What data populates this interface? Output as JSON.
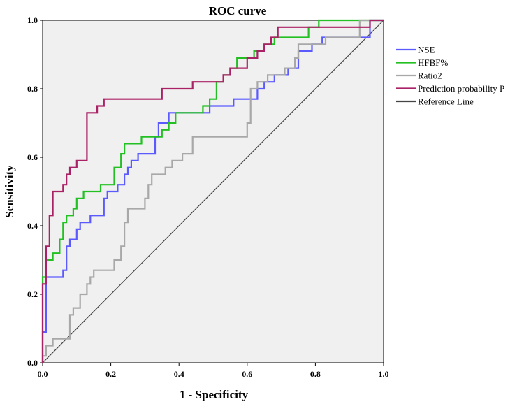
{
  "chart_data": {
    "type": "line",
    "title": "ROC   curve",
    "xlabel": "1 - Specificity",
    "ylabel": "Sensitivity",
    "xlim": [
      0,
      1
    ],
    "ylim": [
      0,
      1
    ],
    "xticks": [
      "0.0",
      "0.2",
      "0.4",
      "0.6",
      "0.8",
      "1.0"
    ],
    "yticks": [
      "0.0",
      "0.2",
      "0.4",
      "0.6",
      "0.8",
      "1.0"
    ],
    "legend_position": "right",
    "series": [
      {
        "name": "NSE",
        "color": "#5a5aff",
        "points": [
          [
            0,
            0
          ],
          [
            0,
            0.09
          ],
          [
            0.01,
            0.09
          ],
          [
            0.01,
            0.25
          ],
          [
            0.06,
            0.25
          ],
          [
            0.06,
            0.27
          ],
          [
            0.07,
            0.27
          ],
          [
            0.07,
            0.34
          ],
          [
            0.08,
            0.34
          ],
          [
            0.08,
            0.36
          ],
          [
            0.1,
            0.36
          ],
          [
            0.1,
            0.39
          ],
          [
            0.11,
            0.39
          ],
          [
            0.11,
            0.41
          ],
          [
            0.14,
            0.41
          ],
          [
            0.14,
            0.43
          ],
          [
            0.18,
            0.43
          ],
          [
            0.18,
            0.48
          ],
          [
            0.19,
            0.48
          ],
          [
            0.19,
            0.5
          ],
          [
            0.22,
            0.5
          ],
          [
            0.22,
            0.52
          ],
          [
            0.24,
            0.52
          ],
          [
            0.24,
            0.55
          ],
          [
            0.25,
            0.55
          ],
          [
            0.25,
            0.57
          ],
          [
            0.26,
            0.57
          ],
          [
            0.26,
            0.59
          ],
          [
            0.28,
            0.59
          ],
          [
            0.28,
            0.61
          ],
          [
            0.3,
            0.61
          ],
          [
            0.3,
            0.61
          ],
          [
            0.33,
            0.61
          ],
          [
            0.33,
            0.66
          ],
          [
            0.34,
            0.66
          ],
          [
            0.34,
            0.7
          ],
          [
            0.37,
            0.7
          ],
          [
            0.37,
            0.73
          ],
          [
            0.44,
            0.73
          ],
          [
            0.44,
            0.73
          ],
          [
            0.49,
            0.73
          ],
          [
            0.49,
            0.75
          ],
          [
            0.56,
            0.75
          ],
          [
            0.56,
            0.77
          ],
          [
            0.63,
            0.77
          ],
          [
            0.63,
            0.8
          ],
          [
            0.65,
            0.8
          ],
          [
            0.65,
            0.82
          ],
          [
            0.68,
            0.82
          ],
          [
            0.68,
            0.84
          ],
          [
            0.7,
            0.84
          ],
          [
            0.7,
            0.84
          ],
          [
            0.72,
            0.84
          ],
          [
            0.72,
            0.86
          ],
          [
            0.75,
            0.86
          ],
          [
            0.75,
            0.91
          ],
          [
            0.79,
            0.91
          ],
          [
            0.79,
            0.93
          ],
          [
            0.82,
            0.93
          ],
          [
            0.82,
            0.95
          ],
          [
            0.96,
            0.95
          ],
          [
            0.96,
            1.0
          ],
          [
            1.0,
            1.0
          ]
        ]
      },
      {
        "name": "HFBF%",
        "color": "#22c022",
        "points": [
          [
            0,
            0
          ],
          [
            0,
            0.25
          ],
          [
            0.01,
            0.25
          ],
          [
            0.01,
            0.3
          ],
          [
            0.03,
            0.3
          ],
          [
            0.03,
            0.32
          ],
          [
            0.05,
            0.32
          ],
          [
            0.05,
            0.36
          ],
          [
            0.06,
            0.36
          ],
          [
            0.06,
            0.41
          ],
          [
            0.07,
            0.41
          ],
          [
            0.07,
            0.43
          ],
          [
            0.09,
            0.43
          ],
          [
            0.09,
            0.45
          ],
          [
            0.1,
            0.45
          ],
          [
            0.1,
            0.48
          ],
          [
            0.12,
            0.48
          ],
          [
            0.12,
            0.5
          ],
          [
            0.17,
            0.5
          ],
          [
            0.17,
            0.52
          ],
          [
            0.21,
            0.52
          ],
          [
            0.21,
            0.57
          ],
          [
            0.23,
            0.57
          ],
          [
            0.23,
            0.61
          ],
          [
            0.24,
            0.61
          ],
          [
            0.24,
            0.64
          ],
          [
            0.29,
            0.64
          ],
          [
            0.29,
            0.66
          ],
          [
            0.35,
            0.66
          ],
          [
            0.35,
            0.68
          ],
          [
            0.37,
            0.68
          ],
          [
            0.37,
            0.7
          ],
          [
            0.39,
            0.7
          ],
          [
            0.39,
            0.73
          ],
          [
            0.47,
            0.73
          ],
          [
            0.47,
            0.75
          ],
          [
            0.49,
            0.75
          ],
          [
            0.49,
            0.77
          ],
          [
            0.51,
            0.77
          ],
          [
            0.51,
            0.82
          ],
          [
            0.53,
            0.82
          ],
          [
            0.53,
            0.84
          ],
          [
            0.55,
            0.84
          ],
          [
            0.55,
            0.86
          ],
          [
            0.57,
            0.86
          ],
          [
            0.57,
            0.89
          ],
          [
            0.62,
            0.89
          ],
          [
            0.62,
            0.91
          ],
          [
            0.65,
            0.91
          ],
          [
            0.65,
            0.93
          ],
          [
            0.68,
            0.93
          ],
          [
            0.68,
            0.95
          ],
          [
            0.78,
            0.95
          ],
          [
            0.78,
            0.98
          ],
          [
            0.81,
            0.98
          ],
          [
            0.81,
            1.0
          ],
          [
            1.0,
            1.0
          ]
        ]
      },
      {
        "name": "Ratio2",
        "color": "#a8a8a8",
        "points": [
          [
            0,
            0
          ],
          [
            0,
            0.02
          ],
          [
            0.01,
            0.02
          ],
          [
            0.01,
            0.05
          ],
          [
            0.03,
            0.05
          ],
          [
            0.03,
            0.07
          ],
          [
            0.08,
            0.07
          ],
          [
            0.08,
            0.14
          ],
          [
            0.09,
            0.14
          ],
          [
            0.09,
            0.16
          ],
          [
            0.11,
            0.16
          ],
          [
            0.11,
            0.2
          ],
          [
            0.13,
            0.2
          ],
          [
            0.13,
            0.23
          ],
          [
            0.14,
            0.23
          ],
          [
            0.14,
            0.25
          ],
          [
            0.15,
            0.25
          ],
          [
            0.15,
            0.27
          ],
          [
            0.21,
            0.27
          ],
          [
            0.21,
            0.3
          ],
          [
            0.23,
            0.3
          ],
          [
            0.23,
            0.34
          ],
          [
            0.24,
            0.34
          ],
          [
            0.24,
            0.41
          ],
          [
            0.25,
            0.41
          ],
          [
            0.25,
            0.45
          ],
          [
            0.3,
            0.45
          ],
          [
            0.3,
            0.48
          ],
          [
            0.31,
            0.48
          ],
          [
            0.31,
            0.52
          ],
          [
            0.32,
            0.52
          ],
          [
            0.32,
            0.55
          ],
          [
            0.36,
            0.55
          ],
          [
            0.36,
            0.57
          ],
          [
            0.38,
            0.57
          ],
          [
            0.38,
            0.59
          ],
          [
            0.41,
            0.59
          ],
          [
            0.41,
            0.61
          ],
          [
            0.44,
            0.61
          ],
          [
            0.44,
            0.66
          ],
          [
            0.6,
            0.66
          ],
          [
            0.6,
            0.7
          ],
          [
            0.61,
            0.7
          ],
          [
            0.61,
            0.8
          ],
          [
            0.63,
            0.8
          ],
          [
            0.63,
            0.82
          ],
          [
            0.66,
            0.82
          ],
          [
            0.66,
            0.84
          ],
          [
            0.71,
            0.84
          ],
          [
            0.71,
            0.86
          ],
          [
            0.74,
            0.86
          ],
          [
            0.74,
            0.89
          ],
          [
            0.75,
            0.89
          ],
          [
            0.75,
            0.93
          ],
          [
            0.83,
            0.93
          ],
          [
            0.83,
            0.95
          ],
          [
            0.93,
            0.95
          ],
          [
            0.93,
            1.0
          ],
          [
            1.0,
            1.0
          ]
        ]
      },
      {
        "name": "Prediction probability P",
        "color": "#aa2266",
        "points": [
          [
            0,
            0
          ],
          [
            0,
            0.23
          ],
          [
            0.01,
            0.23
          ],
          [
            0.01,
            0.34
          ],
          [
            0.02,
            0.34
          ],
          [
            0.02,
            0.43
          ],
          [
            0.03,
            0.43
          ],
          [
            0.03,
            0.5
          ],
          [
            0.06,
            0.5
          ],
          [
            0.06,
            0.52
          ],
          [
            0.07,
            0.52
          ],
          [
            0.07,
            0.55
          ],
          [
            0.08,
            0.55
          ],
          [
            0.08,
            0.57
          ],
          [
            0.1,
            0.57
          ],
          [
            0.1,
            0.59
          ],
          [
            0.13,
            0.59
          ],
          [
            0.13,
            0.73
          ],
          [
            0.16,
            0.73
          ],
          [
            0.16,
            0.75
          ],
          [
            0.18,
            0.75
          ],
          [
            0.18,
            0.77
          ],
          [
            0.35,
            0.77
          ],
          [
            0.35,
            0.8
          ],
          [
            0.44,
            0.8
          ],
          [
            0.44,
            0.82
          ],
          [
            0.53,
            0.82
          ],
          [
            0.53,
            0.84
          ],
          [
            0.55,
            0.84
          ],
          [
            0.55,
            0.86
          ],
          [
            0.6,
            0.86
          ],
          [
            0.6,
            0.89
          ],
          [
            0.63,
            0.89
          ],
          [
            0.63,
            0.91
          ],
          [
            0.65,
            0.91
          ],
          [
            0.65,
            0.93
          ],
          [
            0.67,
            0.93
          ],
          [
            0.67,
            0.95
          ],
          [
            0.69,
            0.95
          ],
          [
            0.69,
            0.98
          ],
          [
            0.96,
            0.98
          ],
          [
            0.96,
            1.0
          ],
          [
            1.0,
            1.0
          ]
        ]
      },
      {
        "name": "Reference Line",
        "color": "#444444",
        "points": [
          [
            0,
            0
          ],
          [
            1,
            1
          ]
        ]
      }
    ]
  }
}
